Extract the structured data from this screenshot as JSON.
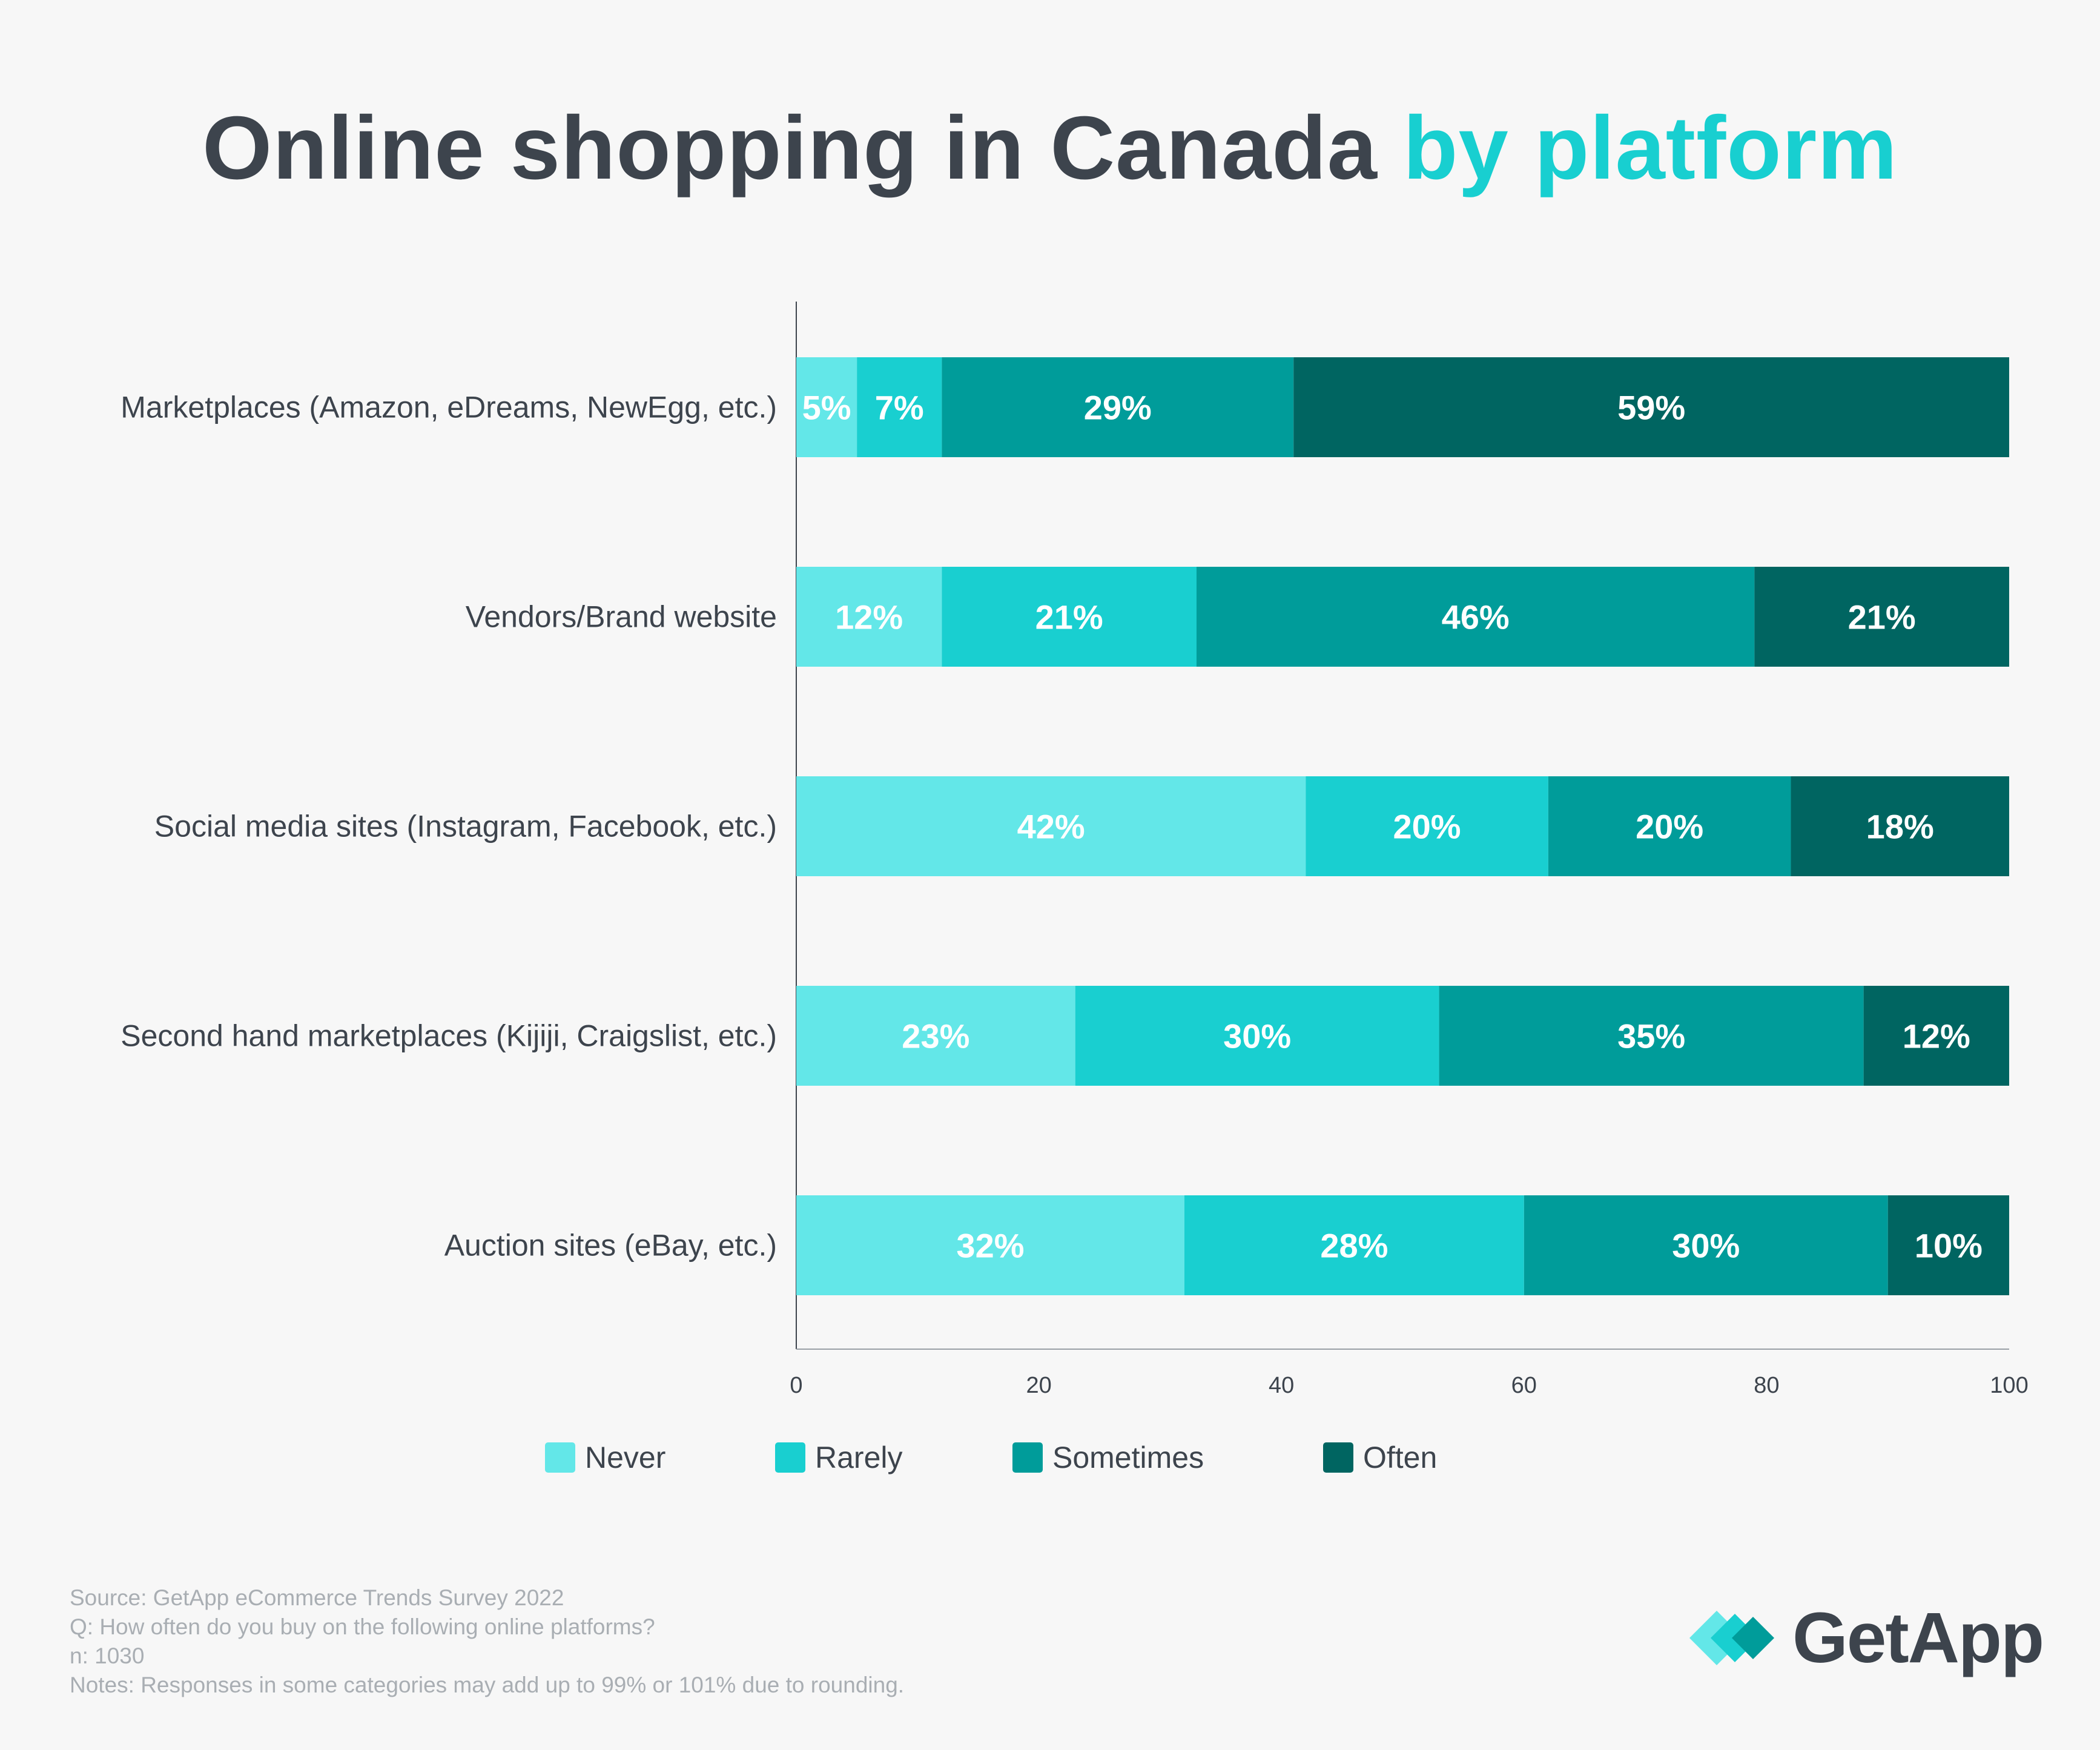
{
  "title": {
    "main": "Online shopping in Canada",
    "accent": "by platform"
  },
  "colors": {
    "never": "#63e7e8",
    "rarely": "#19cfd0",
    "sometimes": "#009c9a",
    "often": "#006561",
    "title_accent": "#18cfd0",
    "text": "#3d444d"
  },
  "chart_data": {
    "type": "bar",
    "orientation": "horizontal",
    "stacked": true,
    "title": "Online shopping in Canada by platform",
    "categories": [
      "Marketplaces (Amazon, eDreams, NewEgg, etc.)",
      "Vendors/Brand website",
      "Social media sites (Instagram, Facebook, etc.)",
      "Second hand marketplaces (Kijiji, Craigslist, etc.)",
      "Auction sites (eBay, etc.)"
    ],
    "series": [
      {
        "name": "Never",
        "color": "#63e7e8",
        "values": [
          5,
          12,
          42,
          23,
          32
        ]
      },
      {
        "name": "Rarely",
        "color": "#19cfd0",
        "values": [
          7,
          21,
          20,
          30,
          28
        ]
      },
      {
        "name": "Sometimes",
        "color": "#009c9a",
        "values": [
          29,
          46,
          20,
          35,
          30
        ]
      },
      {
        "name": "Often",
        "color": "#006561",
        "values": [
          59,
          21,
          18,
          12,
          10
        ]
      }
    ],
    "xlim": [
      0,
      100
    ],
    "xticks": [
      0,
      20,
      40,
      60,
      80,
      100
    ],
    "value_suffix": "%",
    "legend_position": "bottom"
  },
  "notes": {
    "source": "Source: GetApp eCommerce Trends Survey 2022",
    "question": "Q: How often do you buy on the following online platforms?",
    "n": "n: 1030",
    "notes": "Notes: Responses in some categories may add up to 99% or 101% due to rounding."
  },
  "logo": {
    "text": "GetApp"
  }
}
